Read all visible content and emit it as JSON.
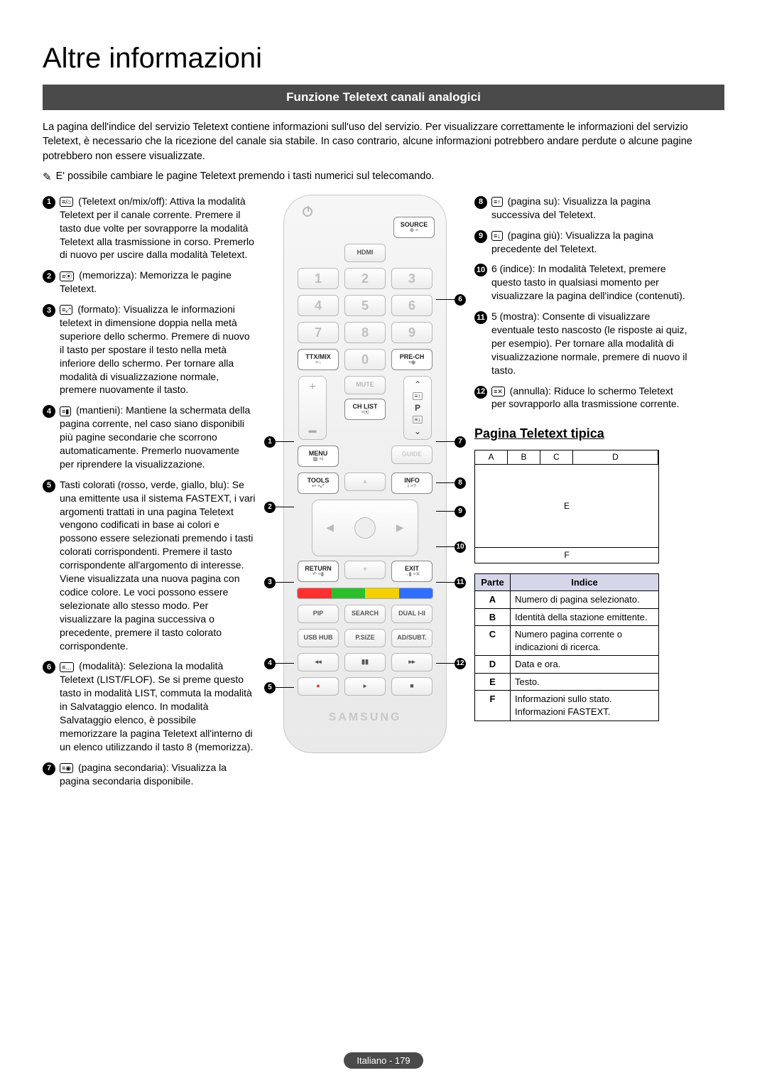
{
  "page_title": "Altre informazioni",
  "section_bar": "Funzione Teletext canali analogici",
  "intro": "La pagina dell'indice del servizio Teletext contiene informazioni sull'uso del servizio. Per visualizzare correttamente le informazioni del servizio Teletext, è necessario che la ricezione del canale sia stabile. In caso contrario, alcune informazioni potrebbero andare perdute o alcune pagine potrebbero non essere visualizzate.",
  "note_icon": "✎",
  "note_text": "E' possibile cambiare le pagine Teletext premendo i tasti numerici sul telecomando.",
  "features_left": [
    {
      "n": "1",
      "icon": "≡/⌂",
      "text": "(Teletext on/mix/off): Attiva la modalità Teletext per il canale corrente. Premere il tasto due volte per sovrapporre la modalità Teletext alla trasmissione in corso. Premerlo di nuovo per uscire dalla modalità Teletext."
    },
    {
      "n": "2",
      "icon": "≡⦿",
      "text": "(memorizza): Memorizza le pagine Teletext."
    },
    {
      "n": "3",
      "icon": "≡⤢",
      "text": "(formato): Visualizza le informazioni teletext in dimensione doppia nella metà superiore dello schermo. Premere di nuovo il tasto per spostare il testo nella metà inferiore dello schermo. Per tornare alla modalità di visualizzazione normale, premere nuovamente il tasto."
    },
    {
      "n": "4",
      "icon": "≡▮",
      "text": "(mantieni): Mantiene la schermata della pagina corrente, nel caso siano disponibili più pagine secondarie che scorrono automaticamente. Premerlo nuovamente per riprendere la visualizzazione."
    },
    {
      "n": "5",
      "icon": "",
      "text": "Tasti colorati (rosso, verde, giallo, blu): Se una emittente usa il sistema FASTEXT, i vari argomenti trattati in una pagina Teletext vengono codificati in base ai colori e possono essere selezionati premendo i tasti colorati corrispondenti. Premere il tasto corrispondente all'argomento di interesse. Viene visualizzata una nuova pagina con codice colore. Le voci possono essere selezionate allo stesso modo. Per visualizzare la pagina successiva o precedente, premere il tasto colorato corrispondente."
    },
    {
      "n": "6",
      "icon": "≡…",
      "text": "(modalità): Seleziona la modalità Teletext (LIST/FLOF). Se si preme questo tasto in modalità LIST, commuta la modalità in Salvataggio elenco. In modalità Salvataggio elenco, è possibile memorizzare la pagina Teletext all'interno di un elenco utilizzando il tasto 8 (memorizza)."
    },
    {
      "n": "7",
      "icon": "≡◉",
      "text": "(pagina secondaria): Visualizza la pagina secondaria disponibile."
    }
  ],
  "features_right": [
    {
      "n": "8",
      "icon": "≡↑",
      "text": "(pagina su): Visualizza la pagina successiva del Teletext."
    },
    {
      "n": "9",
      "icon": "≡↓",
      "text": "(pagina giù): Visualizza la pagina precedente del Teletext."
    },
    {
      "n": "10",
      "icon": "",
      "text": "6 (indice): In modalità Teletext, premere questo tasto in qualsiasi momento per visualizzare la pagina dell'indice (contenuti)."
    },
    {
      "n": "11",
      "icon": "",
      "text": "5 (mostra): Consente di visualizzare eventuale testo nascosto (le risposte ai quiz, per esempio). Per tornare alla modalità di visualizzazione normale, premere di nuovo il tasto."
    },
    {
      "n": "12",
      "icon": "≡✕",
      "text": "(annulla): Riduce lo schermo Teletext per sovrapporlo alla trasmissione corrente."
    }
  ],
  "remote": {
    "source": "SOURCE",
    "hdmi": "HDMI",
    "nums": [
      "1",
      "2",
      "3",
      "4",
      "5",
      "6",
      "7",
      "8",
      "9",
      "0"
    ],
    "ttx": "TTX/MIX",
    "prech": "PRE-CH",
    "mute": "MUTE",
    "chlist": "CH LIST",
    "p": "P",
    "menu": "MENU",
    "guide": "GUIDE",
    "tools": "TOOLS",
    "info": "INFO",
    "return": "RETURN",
    "exit": "EXIT",
    "pip": "PIP",
    "search": "SEARCH",
    "dual": "DUAL I-II",
    "usb": "USB HUB",
    "psize": "P.SIZE",
    "ad": "AD/SUBT.",
    "brand": "SAMSUNG",
    "color_bar": [
      "#ff3030",
      "#2bbf2b",
      "#f5d000",
      "#2f6fff"
    ]
  },
  "subhead": "Pagina Teletext tipica",
  "diagram": {
    "a": "A",
    "b": "B",
    "c": "C",
    "d": "D",
    "e": "E",
    "f": "F"
  },
  "table": {
    "head": [
      "Parte",
      "Indice"
    ],
    "rows": [
      [
        "A",
        "Numero di pagina selezionato."
      ],
      [
        "B",
        "Identità della stazione emittente."
      ],
      [
        "C",
        "Numero pagina corrente o indicazioni di ricerca."
      ],
      [
        "D",
        "Data e ora."
      ],
      [
        "E",
        "Testo."
      ],
      [
        "F",
        "Informazioni sullo stato. Informazioni FASTEXT."
      ]
    ]
  },
  "footer": "Italiano - 179"
}
